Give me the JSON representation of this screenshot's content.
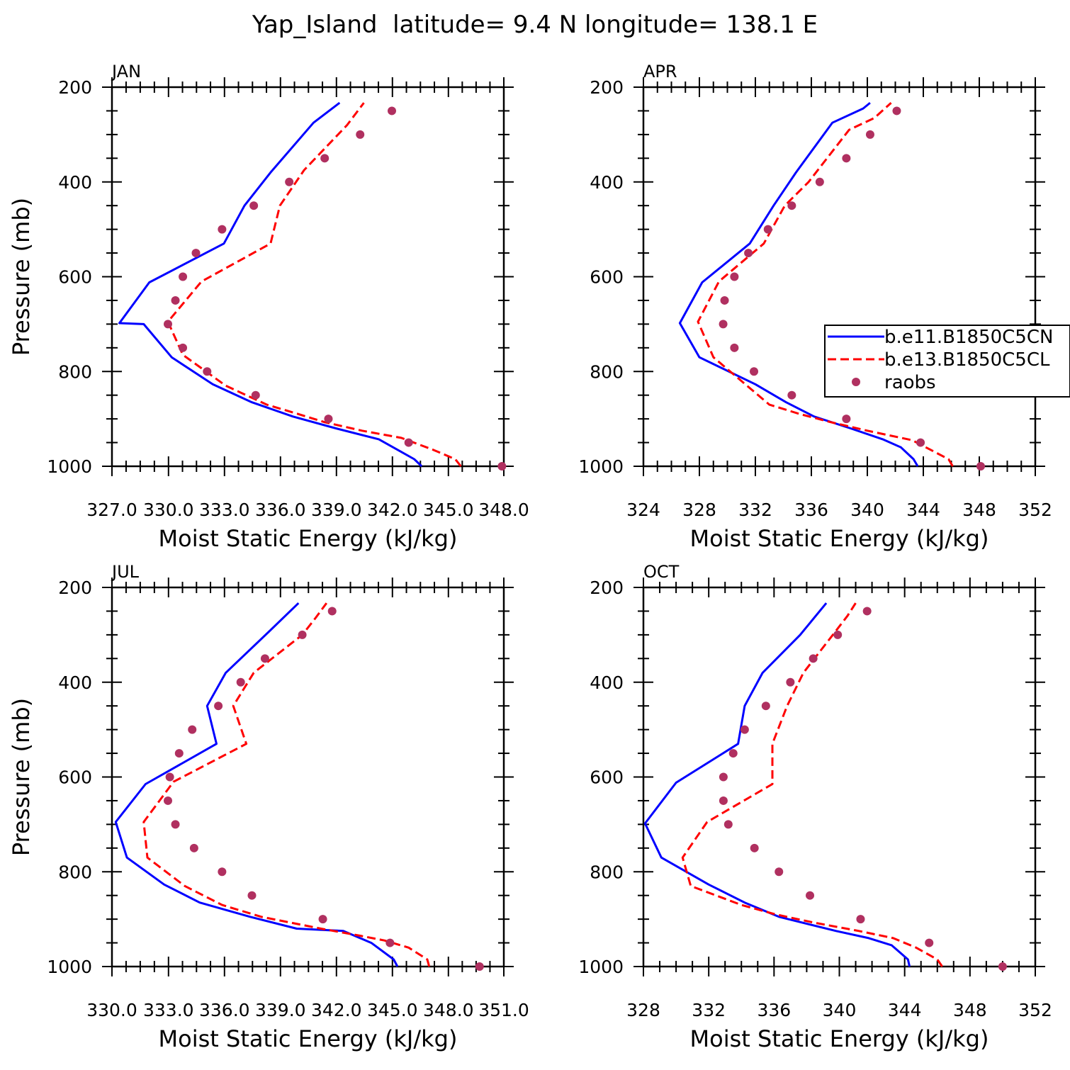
{
  "figure": {
    "title": "Yap_Island  latitude= 9.4 N longitude= 138.1 E",
    "colors": {
      "model1": "#0000ff",
      "model2": "#ff0000",
      "obs": "#b03060",
      "axis": "#000000"
    }
  },
  "legend": {
    "placement": "right, inside APR panel",
    "entries": [
      {
        "label": "b.e11.B1850C5CN",
        "style": "solid",
        "color": "#0000ff"
      },
      {
        "label": "b.e13.B1850C5CL",
        "style": "dashed",
        "color": "#ff0000"
      },
      {
        "label": "raobs",
        "style": "marker",
        "color": "#b03060"
      }
    ]
  },
  "chart_data": [
    {
      "type": "line",
      "title": "JAN",
      "xlabel": "Moist Static Energy (kJ/kg)",
      "ylabel": "Pressure (mb)",
      "xlim": [
        327.0,
        348.0
      ],
      "ylim": [
        1000,
        200
      ],
      "xticks": [
        327.0,
        330.03,
        333.03,
        336.03,
        339.03,
        342.03,
        345.03,
        348.0
      ],
      "xtick_labels": [
        "327.0",
        "330.0",
        "333.0",
        "336.0",
        "339.0",
        "342.0",
        "345.0",
        "348.0"
      ],
      "yticks": [
        200,
        400,
        600,
        800,
        1000
      ],
      "ytick_labels": [
        "200",
        "400",
        "600",
        "800",
        "1000"
      ],
      "series": [
        {
          "name": "b.e11.B1850C5CN",
          "style": "solid",
          "color": "#0000ff",
          "x": [
            343.6,
            343.2,
            341.3,
            339.0,
            336.7,
            334.5,
            332.4,
            330.2,
            328.7,
            327.4,
            329.0,
            333.0,
            334.1,
            335.5,
            337.8,
            339.2
          ],
          "y": [
            1000,
            985,
            943,
            920,
            895,
            865,
            827,
            770,
            700,
            698,
            612,
            530,
            450,
            380,
            275,
            233
          ]
        },
        {
          "name": "b.e13.B1850C5CL",
          "style": "dashed",
          "color": "#ff0000",
          "x": [
            345.7,
            345.4,
            344.2,
            342.5,
            340.4,
            338.4,
            337.0,
            335.3,
            333.1,
            330.8,
            330.0,
            331.8,
            335.5,
            336.0,
            337.3,
            339.6,
            340.5
          ],
          "y": [
            1000,
            985,
            965,
            940,
            925,
            907,
            890,
            870,
            830,
            765,
            695,
            610,
            530,
            450,
            375,
            280,
            233
          ]
        },
        {
          "name": "raobs",
          "style": "markers",
          "color": "#b03060",
          "x": [
            347.9,
            342.9,
            338.6,
            334.7,
            332.1,
            330.8,
            330.0,
            330.4,
            330.8,
            331.5,
            332.9,
            334.6,
            336.5,
            338.4,
            340.3,
            342.0
          ],
          "y": [
            1000,
            950,
            900,
            850,
            800,
            750,
            700,
            650,
            600,
            550,
            500,
            450,
            400,
            350,
            300,
            250
          ]
        }
      ]
    },
    {
      "type": "line",
      "title": "APR",
      "xlabel": "Moist Static Energy (kJ/kg)",
      "ylabel": "",
      "xlim": [
        324,
        352
      ],
      "ylim": [
        1000,
        200
      ],
      "xticks": [
        324,
        328,
        332,
        336,
        340,
        344,
        348,
        352
      ],
      "xtick_labels": [
        "324",
        "328",
        "332",
        "336",
        "340",
        "344",
        "348",
        "352"
      ],
      "yticks": [
        200,
        400,
        600,
        800,
        1000
      ],
      "ytick_labels": [
        "200",
        "400",
        "600",
        "800",
        "1000"
      ],
      "series": [
        {
          "name": "b.e11.B1850C5CN",
          "style": "solid",
          "color": "#0000ff",
          "x": [
            343.6,
            343.3,
            342.4,
            341.1,
            338.8,
            336.2,
            334.2,
            332.0,
            328.0,
            326.6,
            328.2,
            331.6,
            333.3,
            334.9,
            337.5,
            339.7,
            340.2
          ],
          "y": [
            1000,
            985,
            960,
            943,
            920,
            895,
            865,
            827,
            770,
            698,
            612,
            530,
            450,
            380,
            275,
            245,
            233
          ]
        },
        {
          "name": "b.e13.B1850C5CL",
          "style": "dashed",
          "color": "#ff0000",
          "x": [
            346.1,
            345.8,
            344.5,
            343.2,
            340.0,
            337.4,
            335.2,
            333.0,
            329.0,
            327.9,
            329.4,
            332.6,
            334.1,
            335.8,
            338.7,
            340.5,
            341.7
          ],
          "y": [
            1000,
            985,
            965,
            945,
            925,
            907,
            890,
            870,
            770,
            695,
            610,
            530,
            450,
            400,
            290,
            265,
            233
          ]
        },
        {
          "name": "raobs",
          "style": "markers",
          "color": "#b03060",
          "x": [
            348.1,
            343.8,
            338.5,
            334.6,
            331.9,
            330.5,
            329.7,
            329.8,
            330.5,
            331.5,
            332.9,
            334.6,
            336.6,
            338.5,
            340.2,
            342.1
          ],
          "y": [
            1000,
            950,
            900,
            850,
            800,
            750,
            700,
            650,
            600,
            550,
            500,
            450,
            400,
            350,
            300,
            250
          ]
        }
      ]
    },
    {
      "type": "line",
      "title": "JUL",
      "xlabel": "Moist Static Energy (kJ/kg)",
      "ylabel": "Pressure (mb)",
      "xlim": [
        330.0,
        351.0
      ],
      "ylim": [
        1000,
        200
      ],
      "xticks": [
        330.0,
        333.03,
        336.03,
        339.03,
        342.03,
        345.03,
        348.03,
        351.0
      ],
      "xtick_labels": [
        "330.0",
        "333.0",
        "336.0",
        "339.0",
        "342.0",
        "345.0",
        "348.0",
        "351.0"
      ],
      "yticks": [
        200,
        400,
        600,
        800,
        1000
      ],
      "ytick_labels": [
        "200",
        "400",
        "600",
        "800",
        "1000"
      ],
      "series": [
        {
          "name": "b.e11.B1850C5CN",
          "style": "solid",
          "color": "#0000ff",
          "x": [
            345.3,
            345.1,
            343.9,
            342.4,
            339.9,
            337.4,
            334.7,
            332.8,
            330.8,
            330.2,
            331.8,
            335.6,
            335.1,
            336.1,
            338.5,
            340.0
          ],
          "y": [
            1000,
            985,
            950,
            925,
            920,
            895,
            865,
            827,
            770,
            695,
            615,
            530,
            450,
            380,
            290,
            233
          ]
        },
        {
          "name": "b.e13.B1850C5CL",
          "style": "dashed",
          "color": "#ff0000",
          "x": [
            347.0,
            346.9,
            345.9,
            344.6,
            343.3,
            341.2,
            338.0,
            335.9,
            333.9,
            331.9,
            331.7,
            333.3,
            337.2,
            336.5,
            337.6,
            340.2,
            340.9,
            341.5
          ],
          "y": [
            1000,
            985,
            960,
            945,
            935,
            920,
            895,
            870,
            830,
            770,
            695,
            610,
            530,
            450,
            380,
            300,
            265,
            233
          ]
        },
        {
          "name": "raobs",
          "style": "markers",
          "color": "#b03060",
          "x": [
            349.7,
            344.9,
            341.3,
            337.5,
            335.9,
            334.4,
            333.4,
            333.0,
            333.1,
            333.6,
            334.3,
            335.7,
            336.9,
            338.2,
            340.2,
            341.8
          ],
          "y": [
            1000,
            950,
            900,
            850,
            800,
            750,
            700,
            650,
            600,
            550,
            500,
            450,
            400,
            350,
            300,
            250
          ]
        }
      ]
    },
    {
      "type": "line",
      "title": "OCT",
      "xlabel": "Moist Static Energy (kJ/kg)",
      "ylabel": "",
      "xlim": [
        328,
        352
      ],
      "ylim": [
        1000,
        200
      ],
      "xticks": [
        328,
        332,
        336,
        340,
        344,
        348,
        352
      ],
      "xtick_labels": [
        "328",
        "332",
        "336",
        "340",
        "344",
        "348",
        "352"
      ],
      "yticks": [
        200,
        400,
        600,
        800,
        1000
      ],
      "ytick_labels": [
        "200",
        "400",
        "600",
        "800",
        "1000"
      ],
      "series": [
        {
          "name": "b.e11.B1850C5CN",
          "style": "solid",
          "color": "#0000ff",
          "x": [
            344.3,
            344.2,
            343.2,
            341.8,
            339.8,
            336.3,
            334.2,
            332.0,
            329.1,
            328.1,
            330.0,
            333.8,
            334.2,
            335.3,
            337.6,
            339.2
          ],
          "y": [
            1000,
            985,
            955,
            940,
            925,
            895,
            865,
            827,
            770,
            698,
            612,
            530,
            450,
            380,
            300,
            233
          ]
        },
        {
          "name": "b.e13.B1850C5CL",
          "style": "dashed",
          "color": "#ff0000",
          "x": [
            346.3,
            346.0,
            344.7,
            343.3,
            341.2,
            338.4,
            336.1,
            334.0,
            330.9,
            330.4,
            331.9,
            335.9,
            335.9,
            336.8,
            337.8,
            339.6,
            340.5,
            341.0
          ],
          "y": [
            1000,
            985,
            960,
            940,
            925,
            907,
            890,
            870,
            830,
            770,
            695,
            615,
            530,
            450,
            380,
            300,
            260,
            233
          ]
        },
        {
          "name": "raobs",
          "style": "markers",
          "color": "#b03060",
          "x": [
            350.0,
            345.5,
            341.3,
            338.2,
            336.3,
            334.8,
            333.2,
            332.9,
            332.9,
            333.5,
            334.2,
            335.5,
            337.0,
            338.4,
            339.9,
            341.7
          ],
          "y": [
            1000,
            950,
            900,
            850,
            800,
            750,
            700,
            650,
            600,
            550,
            500,
            450,
            400,
            350,
            300,
            250
          ]
        }
      ]
    }
  ]
}
